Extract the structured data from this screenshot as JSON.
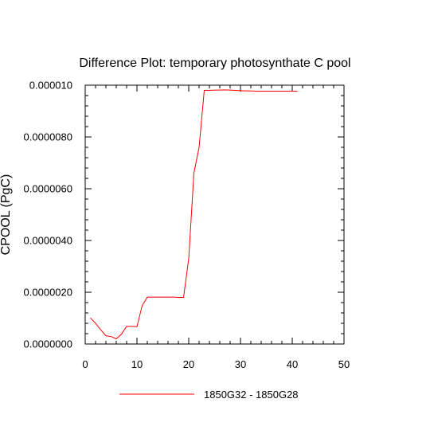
{
  "chart_data": {
    "type": "line",
    "title": "Difference Plot: temporary photosynthate C pool",
    "xlabel": "",
    "ylabel": "CPOOL (PgC)",
    "xlim": [
      0,
      50
    ],
    "ylim": [
      0,
      1e-05
    ],
    "x_ticks": [
      0,
      10,
      20,
      30,
      40,
      50
    ],
    "x_tick_labels": [
      "0",
      "10",
      "20",
      "30",
      "40",
      "50"
    ],
    "y_ticks": [
      0,
      2e-06,
      4e-06,
      6e-06,
      8e-06,
      1e-05
    ],
    "y_tick_labels": [
      "0.0000000",
      "0.0000020",
      "0.0000040",
      "0.0000060",
      "0.0000080",
      "0.000010"
    ],
    "grid": false,
    "legend_position": "bottom-center",
    "series": [
      {
        "name": "1850G32 - 1850G28",
        "color": "#ff0000",
        "x": [
          1,
          2,
          3,
          4,
          5,
          6,
          7,
          8,
          9,
          10,
          11,
          12,
          13,
          14,
          15,
          16,
          17,
          18,
          19,
          20,
          21,
          22,
          23,
          24,
          25,
          26,
          27,
          28,
          29,
          30,
          31,
          32,
          33,
          34,
          35,
          36,
          37,
          38,
          39,
          40,
          41
        ],
        "y": [
          1.01e-06,
          8e-07,
          5.5e-07,
          3.2e-07,
          2.9e-07,
          2e-07,
          3.8e-07,
          6.8e-07,
          6.8e-07,
          6.7e-07,
          1.48e-06,
          1.81e-06,
          1.81e-06,
          1.81e-06,
          1.81e-06,
          1.81e-06,
          1.81e-06,
          1.8e-06,
          1.8e-06,
          3.3e-06,
          6.6e-06,
          7.6e-06,
          9.8e-06,
          9.8e-06,
          9.81e-06,
          9.81e-06,
          9.82e-06,
          9.81e-06,
          9.8e-06,
          9.79e-06,
          9.78e-06,
          9.78e-06,
          9.77e-06,
          9.77e-06,
          9.77e-06,
          9.77e-06,
          9.77e-06,
          9.77e-06,
          9.77e-06,
          9.77e-06,
          9.77e-06
        ]
      }
    ]
  }
}
